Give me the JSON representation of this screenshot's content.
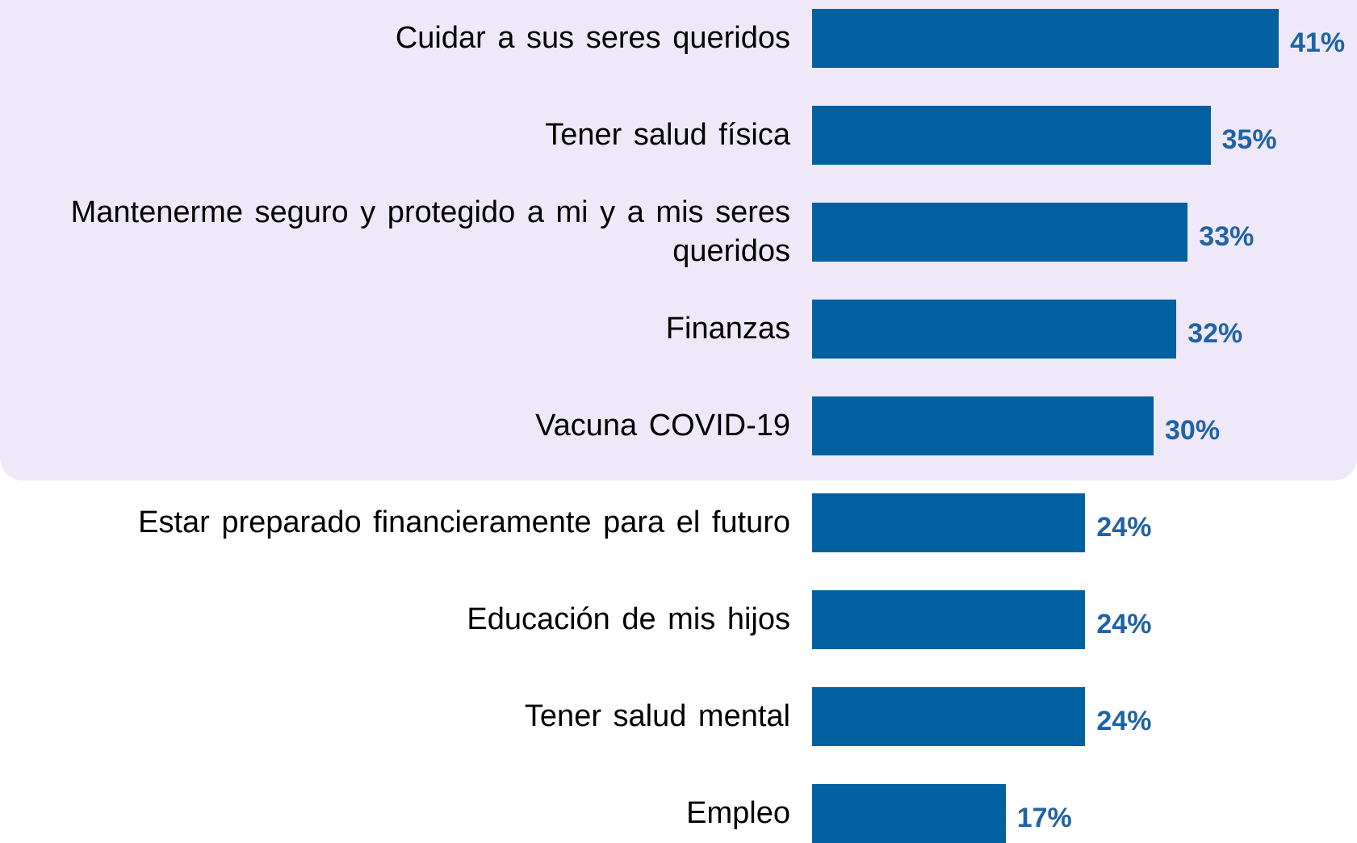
{
  "chart_data": {
    "type": "bar",
    "orientation": "horizontal",
    "categories": [
      "Cuidar a sus seres queridos",
      "Tener salud física",
      "Mantenerme seguro y protegido a mi y a mis seres queridos",
      "Finanzas",
      "Vacuna COVID-19",
      "Estar preparado financieramente para el futuro",
      "Educación de mis hijos",
      "Tener salud mental",
      "Empleo"
    ],
    "values": [
      41,
      35,
      33,
      32,
      30,
      24,
      24,
      24,
      17
    ],
    "value_labels": [
      "41%",
      "35%",
      "33%",
      "32%",
      "30%",
      "24%",
      "24%",
      "24%",
      "17%"
    ],
    "color": "#0060A0"
  }
}
